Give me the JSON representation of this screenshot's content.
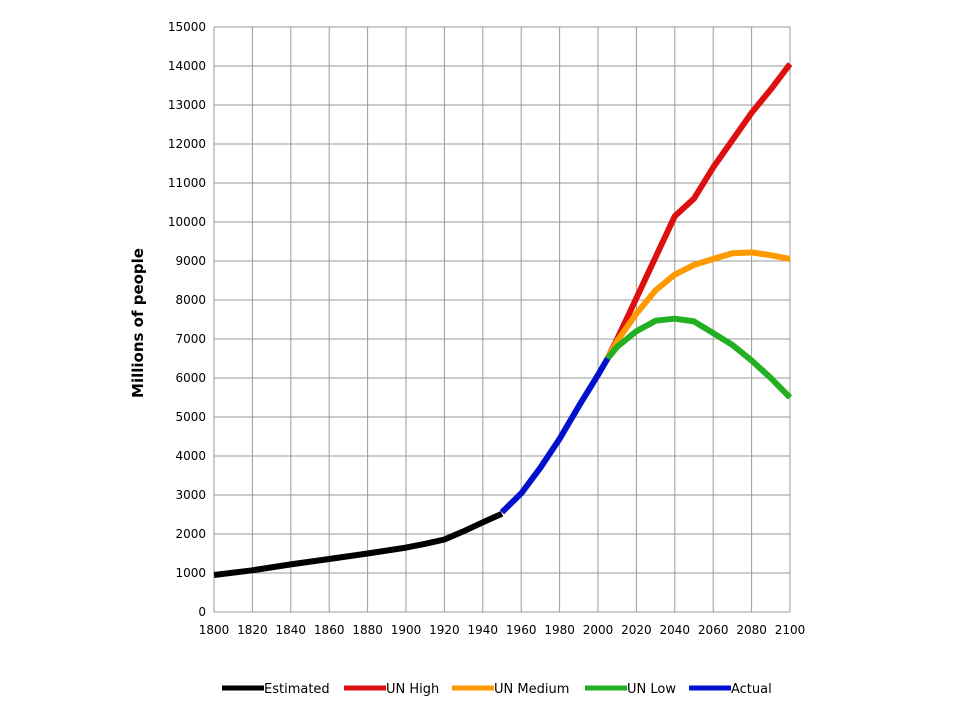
{
  "chart_data": {
    "type": "line",
    "title": "",
    "xlabel": "",
    "ylabel": "Millions of people",
    "xlim": [
      1800,
      2100
    ],
    "ylim": [
      0,
      15000
    ],
    "x_ticks": [
      1800,
      1820,
      1840,
      1860,
      1880,
      1900,
      1920,
      1940,
      1960,
      1980,
      2000,
      2020,
      2040,
      2060,
      2080,
      2100
    ],
    "y_ticks": [
      0,
      1000,
      2000,
      3000,
      4000,
      5000,
      6000,
      7000,
      8000,
      9000,
      10000,
      11000,
      12000,
      13000,
      14000,
      15000
    ],
    "grid": true,
    "legend_position": "bottom",
    "series": [
      {
        "name": "Estimated",
        "color": "#000000",
        "points": [
          [
            1800,
            950
          ],
          [
            1820,
            1070
          ],
          [
            1840,
            1220
          ],
          [
            1860,
            1360
          ],
          [
            1880,
            1500
          ],
          [
            1900,
            1650
          ],
          [
            1910,
            1750
          ],
          [
            1920,
            1860
          ],
          [
            1930,
            2070
          ],
          [
            1940,
            2300
          ],
          [
            1950,
            2520
          ]
        ]
      },
      {
        "name": "UN High",
        "color": "#dd0f0f",
        "points": [
          [
            2005,
            6500
          ],
          [
            2010,
            7000
          ],
          [
            2020,
            8050
          ],
          [
            2030,
            9100
          ],
          [
            2040,
            10150
          ],
          [
            2050,
            10600
          ],
          [
            2060,
            11400
          ],
          [
            2070,
            12100
          ],
          [
            2080,
            12800
          ],
          [
            2090,
            13400
          ],
          [
            2100,
            14050
          ]
        ]
      },
      {
        "name": "UN Medium",
        "color": "#ff9900",
        "points": [
          [
            2005,
            6500
          ],
          [
            2010,
            6950
          ],
          [
            2020,
            7650
          ],
          [
            2030,
            8250
          ],
          [
            2040,
            8650
          ],
          [
            2050,
            8900
          ],
          [
            2060,
            9050
          ],
          [
            2070,
            9200
          ],
          [
            2080,
            9220
          ],
          [
            2090,
            9150
          ],
          [
            2100,
            9050
          ]
        ]
      },
      {
        "name": "UN Low",
        "color": "#22b022",
        "points": [
          [
            2005,
            6500
          ],
          [
            2010,
            6800
          ],
          [
            2020,
            7200
          ],
          [
            2030,
            7470
          ],
          [
            2040,
            7520
          ],
          [
            2050,
            7450
          ],
          [
            2060,
            7150
          ],
          [
            2070,
            6850
          ],
          [
            2080,
            6450
          ],
          [
            2090,
            6000
          ],
          [
            2100,
            5500
          ]
        ]
      },
      {
        "name": "Actual",
        "color": "#0010cc",
        "points": [
          [
            1950,
            2560
          ],
          [
            1960,
            3040
          ],
          [
            1970,
            3700
          ],
          [
            1980,
            4440
          ],
          [
            1990,
            5280
          ],
          [
            2000,
            6080
          ],
          [
            2005,
            6500
          ]
        ]
      }
    ]
  }
}
